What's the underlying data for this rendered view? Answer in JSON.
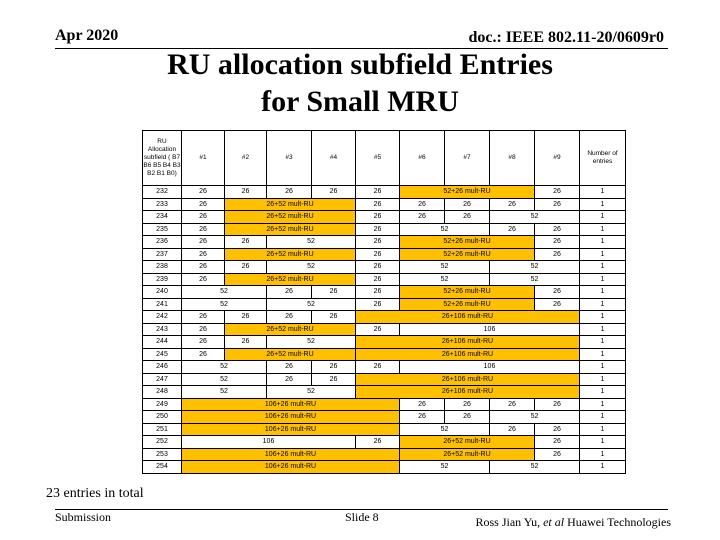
{
  "header": {
    "date": "Apr 2020",
    "doc": "doc.: IEEE 802.11-20/0609r0"
  },
  "title_line1": "RU allocation subfield Entries",
  "title_line2": "for Small MRU",
  "table": {
    "columns": [
      "RU Allocation subfield ( B7 B6 B5 B4 B3 B2 B1 B0)",
      "#1",
      "#2",
      "#3",
      "#4",
      "#5",
      "#6",
      "#7",
      "#8",
      "#9",
      "Number of entries"
    ],
    "rows": [
      [
        {
          "t": "232"
        },
        {
          "t": "26"
        },
        {
          "t": "26"
        },
        {
          "t": "26"
        },
        {
          "t": "26"
        },
        {
          "t": "26"
        },
        {
          "t": "52+26 mult-RU",
          "s": 3,
          "h": 1
        },
        {
          "t": "26"
        },
        {
          "t": "1"
        }
      ],
      [
        {
          "t": "233"
        },
        {
          "t": "26"
        },
        {
          "t": "26+52 mult-RU",
          "s": 3,
          "h": 1
        },
        {
          "t": "26"
        },
        {
          "t": "26"
        },
        {
          "t": "26"
        },
        {
          "t": "26"
        },
        {
          "t": "26"
        },
        {
          "t": "1"
        }
      ],
      [
        {
          "t": "234"
        },
        {
          "t": "26"
        },
        {
          "t": "26+52 mult-RU",
          "s": 3,
          "h": 1
        },
        {
          "t": "26"
        },
        {
          "t": "26"
        },
        {
          "t": "26"
        },
        {
          "t": "52",
          "s": 2
        },
        {
          "t": "1"
        }
      ],
      [
        {
          "t": "235"
        },
        {
          "t": "26"
        },
        {
          "t": "26+52 mult-RU",
          "s": 3,
          "h": 1
        },
        {
          "t": "26"
        },
        {
          "t": "52",
          "s": 2
        },
        {
          "t": "26"
        },
        {
          "t": "26"
        },
        {
          "t": "1"
        }
      ],
      [
        {
          "t": "236"
        },
        {
          "t": "26"
        },
        {
          "t": "26"
        },
        {
          "t": "52",
          "s": 2
        },
        {
          "t": "26"
        },
        {
          "t": "52+26 mult-RU",
          "s": 3,
          "h": 1
        },
        {
          "t": "26"
        },
        {
          "t": "1"
        }
      ],
      [
        {
          "t": "237"
        },
        {
          "t": "26"
        },
        {
          "t": "26+52 mult-RU",
          "s": 3,
          "h": 1
        },
        {
          "t": "26"
        },
        {
          "t": "52+26 mult-RU",
          "s": 3,
          "h": 1
        },
        {
          "t": "26"
        },
        {
          "t": "1"
        }
      ],
      [
        {
          "t": "238"
        },
        {
          "t": "26"
        },
        {
          "t": "26"
        },
        {
          "t": "52",
          "s": 2
        },
        {
          "t": "26"
        },
        {
          "t": "52",
          "s": 2
        },
        {
          "t": "52",
          "s": 2
        },
        {
          "t": "1"
        }
      ],
      [
        {
          "t": "239"
        },
        {
          "t": "26"
        },
        {
          "t": "26+52 mult-RU",
          "s": 3,
          "h": 1
        },
        {
          "t": "26"
        },
        {
          "t": "52",
          "s": 2
        },
        {
          "t": "52",
          "s": 2
        },
        {
          "t": "1"
        }
      ],
      [
        {
          "t": "240"
        },
        {
          "t": "52",
          "s": 2
        },
        {
          "t": "26"
        },
        {
          "t": "26"
        },
        {
          "t": "26"
        },
        {
          "t": "52+26 mult-RU",
          "s": 3,
          "h": 1
        },
        {
          "t": "26"
        },
        {
          "t": "1"
        }
      ],
      [
        {
          "t": "241"
        },
        {
          "t": "52",
          "s": 2
        },
        {
          "t": "52",
          "s": 2
        },
        {
          "t": "26"
        },
        {
          "t": "52+26 mult-RU",
          "s": 3,
          "h": 1
        },
        {
          "t": "26"
        },
        {
          "t": "1"
        }
      ],
      [
        {
          "t": "242"
        },
        {
          "t": "26"
        },
        {
          "t": "26"
        },
        {
          "t": "26"
        },
        {
          "t": "26"
        },
        {
          "t": "26+106 mult-RU",
          "s": 5,
          "h": 1
        },
        {
          "t": "1"
        }
      ],
      [
        {
          "t": "243"
        },
        {
          "t": "26"
        },
        {
          "t": "26+52 mult-RU",
          "s": 3,
          "h": 1
        },
        {
          "t": "26"
        },
        {
          "t": "106",
          "s": 4
        },
        {
          "t": "1"
        }
      ],
      [
        {
          "t": "244"
        },
        {
          "t": "26"
        },
        {
          "t": "26"
        },
        {
          "t": "52",
          "s": 2
        },
        {
          "t": "26+106 mult-RU",
          "s": 5,
          "h": 1
        },
        {
          "t": "1"
        }
      ],
      [
        {
          "t": "245"
        },
        {
          "t": "26"
        },
        {
          "t": "26+52 mult-RU",
          "s": 3,
          "h": 1
        },
        {
          "t": "26+106 mult-RU",
          "s": 5,
          "h": 1
        },
        {
          "t": "1"
        }
      ],
      [
        {
          "t": "246"
        },
        {
          "t": "52",
          "s": 2
        },
        {
          "t": "26"
        },
        {
          "t": "26"
        },
        {
          "t": "26"
        },
        {
          "t": "106",
          "s": 4
        },
        {
          "t": "1"
        }
      ],
      [
        {
          "t": "247"
        },
        {
          "t": "52",
          "s": 2
        },
        {
          "t": "26"
        },
        {
          "t": "26"
        },
        {
          "t": "26+106 mult-RU",
          "s": 5,
          "h": 1
        },
        {
          "t": "1"
        }
      ],
      [
        {
          "t": "248"
        },
        {
          "t": "52",
          "s": 2
        },
        {
          "t": "52",
          "s": 2
        },
        {
          "t": "26+106 mult-RU",
          "s": 5,
          "h": 1
        },
        {
          "t": "1"
        }
      ],
      [
        {
          "t": "249"
        },
        {
          "t": "106+26 mult-RU",
          "s": 5,
          "h": 1
        },
        {
          "t": "26"
        },
        {
          "t": "26"
        },
        {
          "t": "26"
        },
        {
          "t": "26"
        },
        {
          "t": "1"
        }
      ],
      [
        {
          "t": "250"
        },
        {
          "t": "106+26 mult-RU",
          "s": 5,
          "h": 1
        },
        {
          "t": "26"
        },
        {
          "t": "26"
        },
        {
          "t": "52",
          "s": 2
        },
        {
          "t": "1"
        }
      ],
      [
        {
          "t": "251"
        },
        {
          "t": "106+26 mult-RU",
          "s": 5,
          "h": 1
        },
        {
          "t": "52",
          "s": 2
        },
        {
          "t": "26"
        },
        {
          "t": "26"
        },
        {
          "t": "1"
        }
      ],
      [
        {
          "t": "252"
        },
        {
          "t": "106",
          "s": 4
        },
        {
          "t": "26"
        },
        {
          "t": "26+52 mult-RU",
          "s": 3,
          "h": 1
        },
        {
          "t": "26"
        },
        {
          "t": "1"
        }
      ],
      [
        {
          "t": "253"
        },
        {
          "t": "106+26 mult-RU",
          "s": 5,
          "h": 1
        },
        {
          "t": "26+52 mult-RU",
          "s": 3,
          "h": 1
        },
        {
          "t": "26"
        },
        {
          "t": "1"
        }
      ],
      [
        {
          "t": "254"
        },
        {
          "t": "106+26 mult-RU",
          "s": 5,
          "h": 1
        },
        {
          "t": "52",
          "s": 2
        },
        {
          "t": "52",
          "s": 2
        },
        {
          "t": "1"
        }
      ]
    ],
    "highlight_color": "#ffc000"
  },
  "footer": {
    "total": "23 entries in total",
    "left": "Submission",
    "slide": "Slide 8",
    "author_plain": "Ross Jian Yu, ",
    "author_italic": "et al",
    "author_org": " Huawei Technologies"
  }
}
